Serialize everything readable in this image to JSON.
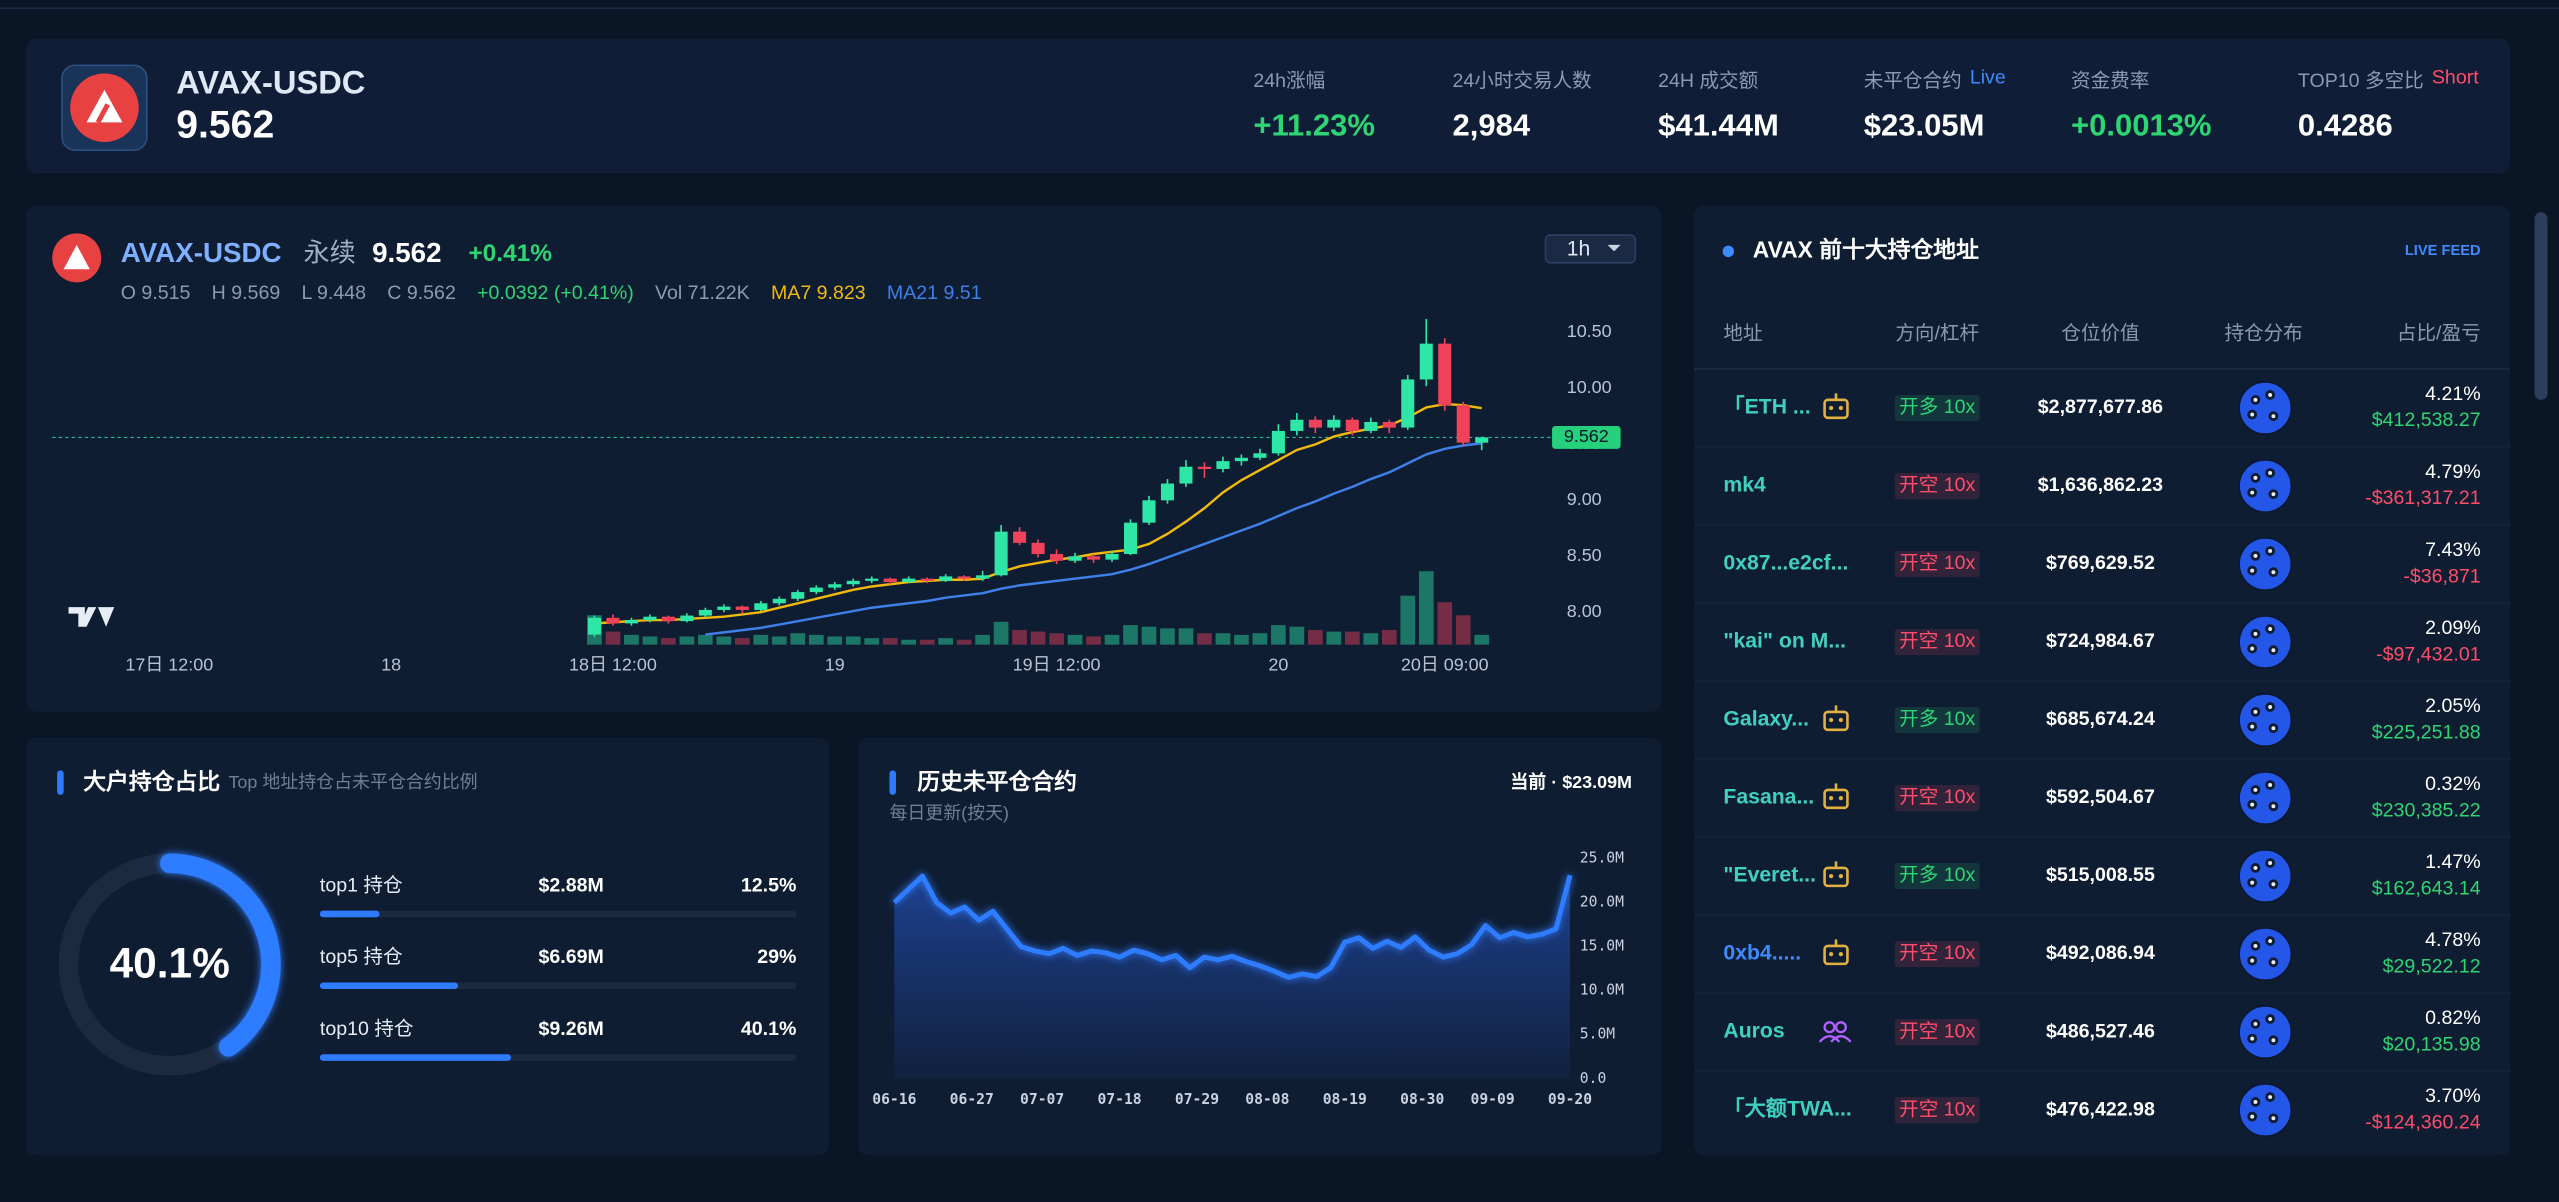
{
  "header": {
    "pair": "AVAX-USDC",
    "price": 9.562,
    "stats": [
      {
        "label": "24h涨幅",
        "value": "+11.23%",
        "color": "#2ed573"
      },
      {
        "label": "24小时交易人数",
        "value": "2,984",
        "color": "#ffffff"
      },
      {
        "label": "24H 成交额",
        "value": "$41.44M",
        "color": "#ffffff"
      },
      {
        "label": "未平仓合约",
        "badge": "Live",
        "badge_color": "#3d8bff",
        "value": "$23.05M",
        "color": "#ffffff"
      },
      {
        "label": "资金费率",
        "value": "+0.0013%",
        "color": "#2ed573"
      },
      {
        "label": "TOP10 多空比",
        "badge": "Short",
        "badge_color": "#ff4d6a",
        "value": "0.4286",
        "color": "#ffffff"
      }
    ]
  },
  "chart_data": [
    {
      "type": "candlestick",
      "pair": "AVAX-USDC",
      "market": "永续",
      "price": 9.562,
      "change": "+0.41%",
      "interval": "1h",
      "info": [
        {
          "text": "O 9.515",
          "color": "#8d9bb0"
        },
        {
          "text": "H 9.569",
          "color": "#8d9bb0"
        },
        {
          "text": "L 9.448",
          "color": "#8d9bb0"
        },
        {
          "text": "C 9.562",
          "color": "#8d9bb0"
        },
        {
          "text": "+0.0392 (+0.41%)",
          "color": "#2ed573"
        },
        {
          "text": "Vol 71.22K",
          "color": "#8d9bb0"
        },
        {
          "text": "MA7 9.823",
          "color": "#f0b90b"
        },
        {
          "text": "MA21 9.51",
          "color": "#3f7fe8"
        }
      ],
      "x": [
        "18日 11:00",
        "18日 12:00",
        "18日 13:00",
        "18日 14:00",
        "18日 15:00",
        "18日 16:00",
        "18日 17:00",
        "18日 18:00",
        "18日 19:00",
        "18日 20:00",
        "18日 21:00",
        "18日 22:00",
        "18日 23:00",
        "19日 00:00",
        "19日 01:00",
        "19日 02:00",
        "19日 03:00",
        "19日 04:00",
        "19日 05:00",
        "19日 06:00",
        "19日 07:00",
        "19日 08:00",
        "19日 09:00",
        "19日 10:00",
        "19日 11:00",
        "19日 12:00",
        "19日 13:00",
        "19日 14:00",
        "19日 15:00",
        "19日 16:00",
        "19日 17:00",
        "19日 18:00",
        "19日 19:00",
        "19日 20:00",
        "19日 21:00",
        "19日 22:00",
        "19日 23:00",
        "20日 00:00",
        "20日 01:00",
        "20日 02:00",
        "20日 03:00",
        "20日 04:00",
        "20日 05:00",
        "20日 06:00",
        "20日 07:00",
        "20日 08:00",
        "20日 09:00",
        "20日 10:00",
        "20日 11:00"
      ],
      "open": [
        7.8,
        7.95,
        7.9,
        7.93,
        7.96,
        7.92,
        7.97,
        8.02,
        8.05,
        8.02,
        8.08,
        8.12,
        8.18,
        8.22,
        8.25,
        8.28,
        8.3,
        8.27,
        8.3,
        8.28,
        8.32,
        8.3,
        8.33,
        8.72,
        8.62,
        8.52,
        8.46,
        8.5,
        8.47,
        8.52,
        8.8,
        9.0,
        9.15,
        9.3,
        9.28,
        9.35,
        9.38,
        9.42,
        9.62,
        9.72,
        9.65,
        9.72,
        9.62,
        9.7,
        9.65,
        10.08,
        10.4,
        9.85,
        9.515
      ],
      "high": [
        7.97,
        7.98,
        7.95,
        7.98,
        7.97,
        7.99,
        8.04,
        8.07,
        8.06,
        8.1,
        8.14,
        8.2,
        8.24,
        8.27,
        8.3,
        8.32,
        8.31,
        8.32,
        8.31,
        8.34,
        8.33,
        8.37,
        8.78,
        8.76,
        8.65,
        8.56,
        8.53,
        8.52,
        8.55,
        8.83,
        9.04,
        9.19,
        9.36,
        9.34,
        9.39,
        9.41,
        9.46,
        9.68,
        9.78,
        9.75,
        9.76,
        9.74,
        9.74,
        9.72,
        10.12,
        10.62,
        10.45,
        9.88,
        9.569
      ],
      "low": [
        7.78,
        7.88,
        7.88,
        7.91,
        7.9,
        7.91,
        7.95,
        8.0,
        7.99,
        8.01,
        8.06,
        8.1,
        8.16,
        8.2,
        8.23,
        8.26,
        8.25,
        8.26,
        8.26,
        8.27,
        8.28,
        8.28,
        8.32,
        8.6,
        8.49,
        8.43,
        8.44,
        8.44,
        8.45,
        8.51,
        8.78,
        8.97,
        9.12,
        9.2,
        9.25,
        9.31,
        9.36,
        9.4,
        9.58,
        9.6,
        9.62,
        9.58,
        9.6,
        9.6,
        9.63,
        10.02,
        9.8,
        9.48,
        9.448
      ],
      "close": [
        7.95,
        7.9,
        7.93,
        7.96,
        7.92,
        7.97,
        8.02,
        8.05,
        8.02,
        8.08,
        8.12,
        8.18,
        8.22,
        8.25,
        8.28,
        8.3,
        8.27,
        8.3,
        8.28,
        8.32,
        8.3,
        8.33,
        8.72,
        8.62,
        8.52,
        8.46,
        8.5,
        8.47,
        8.52,
        8.8,
        9.0,
        9.15,
        9.3,
        9.28,
        9.35,
        9.38,
        9.42,
        9.62,
        9.72,
        9.65,
        9.72,
        9.62,
        9.7,
        9.65,
        10.08,
        10.4,
        9.85,
        9.515,
        9.562
      ],
      "volume": [
        18,
        8,
        6,
        5,
        4,
        5,
        6,
        5,
        4,
        6,
        5,
        7,
        6,
        5,
        5,
        4,
        4,
        3,
        3,
        4,
        3,
        6,
        14,
        9,
        8,
        7,
        6,
        5,
        6,
        12,
        11,
        10,
        10,
        7,
        7,
        6,
        7,
        12,
        11,
        9,
        8,
        8,
        7,
        9,
        30,
        45,
        26,
        18,
        6
      ],
      "ma7": [
        7.9,
        7.91,
        7.92,
        7.93,
        7.93,
        7.94,
        7.95,
        7.96,
        7.98,
        8.0,
        8.04,
        8.08,
        8.12,
        8.16,
        8.2,
        8.23,
        8.25,
        8.27,
        8.28,
        8.29,
        8.29,
        8.3,
        8.36,
        8.41,
        8.44,
        8.47,
        8.49,
        8.52,
        8.54,
        8.56,
        8.61,
        8.7,
        8.81,
        8.93,
        9.07,
        9.18,
        9.27,
        9.36,
        9.45,
        9.5,
        9.57,
        9.61,
        9.64,
        9.67,
        9.74,
        9.83,
        9.86,
        9.85,
        9.823
      ],
      "ma21": [
        null,
        null,
        null,
        null,
        null,
        null,
        7.8,
        7.82,
        7.84,
        7.86,
        7.89,
        7.92,
        7.95,
        7.98,
        8.01,
        8.04,
        8.06,
        8.08,
        8.1,
        8.13,
        8.15,
        8.17,
        8.21,
        8.24,
        8.26,
        8.28,
        8.3,
        8.32,
        8.34,
        8.38,
        8.43,
        8.49,
        8.55,
        8.61,
        8.67,
        8.73,
        8.79,
        8.86,
        8.93,
        8.99,
        9.06,
        9.12,
        9.19,
        9.25,
        9.33,
        9.41,
        9.46,
        9.49,
        9.51
      ],
      "up_color": "#2ee6a6",
      "down_color": "#f0435a",
      "ma7_color": "#f0b90b",
      "ma21_color": "#3f7fe8",
      "last_price": 9.562,
      "xlim": [
        "17日 05:40",
        "20日 13:50"
      ],
      "xticks": [
        "17日 12:00",
        {
          "value": "18日 00:00",
          "label": "18"
        },
        "18日 12:00",
        {
          "value": "19日 00:00",
          "label": "19"
        },
        "19日 12:00",
        {
          "value": "20日 00:00",
          "label": "20"
        },
        "20日 09:00"
      ],
      "ylim": [
        7.71,
        10.7
      ],
      "yticks": [
        {
          "value": 8,
          "label": "8.00"
        },
        {
          "value": 8.5,
          "label": "8.50"
        },
        {
          "value": 9,
          "label": "9.00"
        },
        {
          "value": 9.5,
          "label": "9.50"
        },
        {
          "value": 10,
          "label": "10.00"
        },
        {
          "value": 10.5,
          "label": "10.50"
        }
      ],
      "grid": false
    },
    {
      "type": "donut",
      "title": "大户持仓占比",
      "subtitle": "Top 地址持仓占未平仓合约比例",
      "total": 40.1,
      "total_label": "40.1%",
      "color": "#2f7bff",
      "track_color": "#1c2a40",
      "categories": [
        "top1 持仓",
        "top5 持仓",
        "top10 持仓"
      ],
      "amounts": [
        "$2.88M",
        "$6.69M",
        "$9.26M"
      ],
      "values": [
        12.5,
        29,
        40.1
      ],
      "value_labels": [
        "12.5%",
        "29%",
        "40.1%"
      ],
      "xlim": [
        0,
        100
      ]
    },
    {
      "type": "area",
      "title": "历史未平仓合约",
      "subtitle": "每日更新(按天)",
      "current": "当前 · $23.09M",
      "color": "#2f7bff",
      "x": [
        "06-16",
        "06-18",
        "06-20",
        "06-22",
        "06-24",
        "06-26",
        "06-28",
        "06-30",
        "07-02",
        "07-04",
        "07-06",
        "07-08",
        "07-10",
        "07-12",
        "07-14",
        "07-16",
        "07-18",
        "07-20",
        "07-22",
        "07-24",
        "07-26",
        "07-28",
        "07-30",
        "08-01",
        "08-03",
        "08-05",
        "08-07",
        "08-09",
        "08-11",
        "08-13",
        "08-15",
        "08-17",
        "08-19",
        "08-21",
        "08-23",
        "08-25",
        "08-27",
        "08-29",
        "08-31",
        "09-02",
        "09-04",
        "09-06",
        "09-08",
        "09-10",
        "09-12",
        "09-14",
        "09-16",
        "09-18",
        "09-20"
      ],
      "values": [
        20.0,
        21.5,
        23.0,
        20.0,
        18.8,
        19.5,
        18.0,
        19.0,
        17.0,
        15.0,
        14.5,
        14.2,
        14.8,
        14.0,
        14.5,
        14.3,
        13.8,
        14.6,
        14.2,
        13.5,
        14.0,
        12.6,
        13.8,
        13.5,
        13.9,
        13.3,
        12.8,
        12.2,
        11.5,
        11.9,
        11.6,
        12.6,
        15.5,
        16.0,
        14.8,
        15.6,
        14.9,
        16.1,
        14.6,
        13.8,
        14.2,
        15.2,
        17.4,
        16.0,
        16.6,
        16.1,
        16.4,
        17.0,
        23.09
      ],
      "xlim": [
        "06-16",
        "09-20"
      ],
      "xticks": [
        "06-16",
        "06-27",
        "07-07",
        "07-18",
        "07-29",
        "08-08",
        "08-19",
        "08-30",
        "09-09",
        "09-20"
      ],
      "ylim": [
        0,
        25
      ],
      "yticks": [
        {
          "value": 0,
          "label": "0.0"
        },
        {
          "value": 5,
          "label": "5.0M"
        },
        {
          "value": 10,
          "label": "10.0M"
        },
        {
          "value": 15,
          "label": "15.0M"
        },
        {
          "value": 20,
          "label": "20.0M"
        },
        {
          "value": 25,
          "label": "25.0M"
        }
      ]
    }
  ],
  "holders_table": {
    "title": "AVAX 前十大持仓地址",
    "live": "LIVE FEED",
    "columns": [
      "地址",
      "方向/杠杆",
      "仓位价值",
      "持仓分布",
      "占比/盈亏"
    ],
    "rows": [
      {
        "addr": "「ETH ...",
        "addr_color": "#3fd0c0",
        "icon": "robot",
        "dir": "开多 10x",
        "dir_color": "#2ed573",
        "value": "$2,877,677.86",
        "pct": "4.21%",
        "pnl": "$412,538.27",
        "pnl_color": "#2ed573"
      },
      {
        "addr": "mk4",
        "addr_color": "#3fd0c0",
        "dir": "开空 10x",
        "dir_color": "#ff4d6a",
        "value": "$1,636,862.23",
        "pct": "4.79%",
        "pnl": "-$361,317.21",
        "pnl_color": "#ff4d6a"
      },
      {
        "addr": "0x87...e2cf...",
        "addr_color": "#3fd0c0",
        "dir": "开空 10x",
        "dir_color": "#ff4d6a",
        "value": "$769,629.52",
        "pct": "7.43%",
        "pnl": "-$36,871",
        "pnl_color": "#ff4d6a"
      },
      {
        "addr": "\"kai\" on M...",
        "addr_color": "#3fd0c0",
        "dir": "开空 10x",
        "dir_color": "#ff4d6a",
        "value": "$724,984.67",
        "pct": "2.09%",
        "pnl": "-$97,432.01",
        "pnl_color": "#ff4d6a"
      },
      {
        "addr": "Galaxy...",
        "addr_color": "#3fd0c0",
        "icon": "robot",
        "dir": "开多 10x",
        "dir_color": "#2ed573",
        "value": "$685,674.24",
        "pct": "2.05%",
        "pnl": "$225,251.88",
        "pnl_color": "#2ed573"
      },
      {
        "addr": "Fasana...",
        "addr_color": "#3fd0c0",
        "icon": "robot",
        "dir": "开空 10x",
        "dir_color": "#ff4d6a",
        "value": "$592,504.67",
        "pct": "0.32%",
        "pnl": "$230,385.22",
        "pnl_color": "#2ed573"
      },
      {
        "addr": "\"Everet...",
        "addr_color": "#3fd0c0",
        "icon": "robot",
        "dir": "开多 10x",
        "dir_color": "#2ed573",
        "value": "$515,008.55",
        "pct": "1.47%",
        "pnl": "$162,643.14",
        "pnl_color": "#2ed573"
      },
      {
        "addr": "0xb4.....",
        "addr_color": "#3d8bff",
        "icon": "robot",
        "dir": "开空 10x",
        "dir_color": "#ff4d6a",
        "value": "$492,086.94",
        "pct": "4.78%",
        "pnl": "$29,522.12",
        "pnl_color": "#2ed573"
      },
      {
        "addr": "Auros",
        "addr_color": "#3fd0c0",
        "icon": "group",
        "dir": "开空 10x",
        "dir_color": "#ff4d6a",
        "value": "$486,527.46",
        "pct": "0.82%",
        "pnl": "$20,135.98",
        "pnl_color": "#2ed573"
      },
      {
        "addr": "「大额TWA...",
        "addr_color": "#3fd0c0",
        "dir": "开空 10x",
        "dir_color": "#ff4d6a",
        "value": "$476,422.98",
        "pct": "3.70%",
        "pnl": "-$124,360.24",
        "pnl_color": "#ff4d6a"
      }
    ]
  }
}
